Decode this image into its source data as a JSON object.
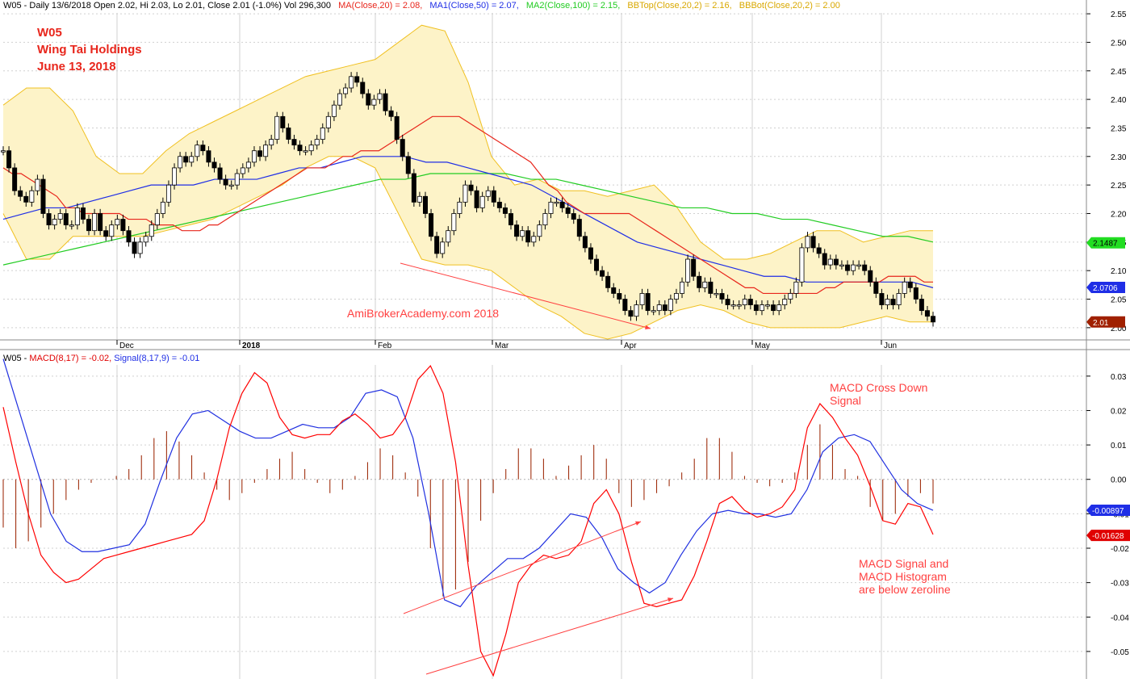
{
  "header": {
    "main_prefix": "W05 - Daily 13/6/2018 Open 2.02, Hi 2.03, Lo 2.01, Close 2.01 (-1.0%) Vol 296,300",
    "ma20": "MA(Close,20) = 2.08,",
    "ma50": "MA1(Close,50) = 2.07,",
    "ma100": "MA2(Close,100) = 2.15,",
    "bbtop": "BBTop(Close,20,2) = 2.16,",
    "bbbot": "BBBot(Close,20,2) = 2.00",
    "macd_prefix": "W05 -",
    "macd_lab": "MACD(8,17) = -0.02,",
    "signal_lab": "Signal(8,17,9) = -0.01"
  },
  "title": {
    "ticker": "W05",
    "company": "Wing Tai Holdings",
    "date": "June 13, 2018"
  },
  "annotations": {
    "watermark": "AmiBrokerAcademy.com  2018",
    "cross_down": "MACD Cross Down Signal",
    "below_zero": "MACD Signal and MACD Histogram are below zeroline"
  },
  "colors": {
    "ma20": "#e8261c",
    "ma50": "#1f2ee6",
    "ma100": "#22cc22",
    "bollinger": "#f0c020",
    "bollinger_fill": "#fdf3c8",
    "macd": "#ff0000",
    "signal": "#2030e0",
    "histogram": "#a03010",
    "annotation": "#ff4040",
    "grid": "#d0d0d0"
  },
  "chart_data": [
    {
      "type": "candlestick",
      "x_tick_labels": [
        "Dec",
        "2018",
        "Feb",
        "Mar",
        "Apr",
        "May",
        "Jun"
      ],
      "y_ticks": [
        2.0,
        2.05,
        2.1,
        2.15,
        2.2,
        2.25,
        2.3,
        2.35,
        2.4,
        2.45,
        2.5,
        2.55
      ],
      "ylim": [
        1.98,
        2.56
      ],
      "grid": true,
      "price_labels": [
        {
          "text": "2.1487",
          "value": 2.1487,
          "color": "#22dd22"
        },
        {
          "text": "2.0706",
          "value": 2.0706,
          "color": "#1f2ee6"
        },
        {
          "text": "2.01",
          "value": 2.01,
          "color": "#a02000"
        }
      ],
      "close": [
        2.31,
        2.28,
        2.24,
        2.23,
        2.22,
        2.24,
        2.26,
        2.2,
        2.18,
        2.19,
        2.2,
        2.18,
        2.18,
        2.21,
        2.19,
        2.17,
        2.2,
        2.17,
        2.16,
        2.18,
        2.19,
        2.17,
        2.15,
        2.13,
        2.15,
        2.16,
        2.18,
        2.2,
        2.22,
        2.25,
        2.28,
        2.3,
        2.29,
        2.3,
        2.32,
        2.31,
        2.29,
        2.28,
        2.26,
        2.25,
        2.25,
        2.27,
        2.28,
        2.29,
        2.31,
        2.3,
        2.32,
        2.33,
        2.37,
        2.35,
        2.33,
        2.32,
        2.31,
        2.31,
        2.32,
        2.33,
        2.35,
        2.37,
        2.39,
        2.41,
        2.42,
        2.44,
        2.43,
        2.41,
        2.39,
        2.4,
        2.41,
        2.38,
        2.37,
        2.33,
        2.3,
        2.27,
        2.22,
        2.23,
        2.2,
        2.16,
        2.13,
        2.15,
        2.17,
        2.2,
        2.22,
        2.25,
        2.24,
        2.21,
        2.23,
        2.24,
        2.22,
        2.21,
        2.2,
        2.18,
        2.16,
        2.17,
        2.15,
        2.16,
        2.18,
        2.2,
        2.22,
        2.22,
        2.21,
        2.2,
        2.19,
        2.16,
        2.14,
        2.12,
        2.1,
        2.09,
        2.07,
        2.06,
        2.05,
        2.03,
        2.02,
        2.04,
        2.06,
        2.03,
        2.03,
        2.04,
        2.03,
        2.05,
        2.06,
        2.08,
        2.12,
        2.09,
        2.07,
        2.08,
        2.06,
        2.06,
        2.05,
        2.04,
        2.04,
        2.04,
        2.05,
        2.04,
        2.03,
        2.04,
        2.04,
        2.03,
        2.04,
        2.05,
        2.06,
        2.08,
        2.14,
        2.16,
        2.14,
        2.13,
        2.11,
        2.12,
        2.11,
        2.11,
        2.1,
        2.11,
        2.11,
        2.1,
        2.08,
        2.06,
        2.04,
        2.05,
        2.04,
        2.06,
        2.08,
        2.07,
        2.05,
        2.03,
        2.02,
        2.01
      ],
      "ma20": [
        2.28,
        2.27,
        2.27,
        2.26,
        2.25,
        2.24,
        2.23,
        2.21,
        2.21,
        2.2,
        2.2,
        2.2,
        2.2,
        2.2,
        2.19,
        2.19,
        2.19,
        2.18,
        2.18,
        2.18,
        2.17,
        2.17,
        2.17,
        2.18,
        2.18,
        2.19,
        2.2,
        2.21,
        2.22,
        2.23,
        2.24,
        2.25,
        2.26,
        2.27,
        2.28,
        2.28,
        2.28,
        2.29,
        2.3,
        2.3,
        2.31,
        2.31,
        2.31,
        2.32,
        2.33,
        2.34,
        2.35,
        2.36,
        2.37,
        2.37,
        2.37,
        2.37,
        2.36,
        2.35,
        2.34,
        2.33,
        2.32,
        2.31,
        2.3,
        2.29,
        2.27,
        2.25,
        2.24,
        2.22,
        2.21,
        2.2,
        2.2,
        2.2,
        2.2,
        2.2,
        2.2,
        2.19,
        2.18,
        2.17,
        2.16,
        2.15,
        2.14,
        2.13,
        2.12,
        2.11,
        2.1,
        2.09,
        2.08,
        2.07,
        2.07,
        2.06,
        2.06,
        2.06,
        2.06,
        2.06,
        2.06,
        2.06,
        2.07,
        2.07,
        2.08,
        2.08,
        2.08,
        2.08,
        2.08,
        2.09,
        2.09,
        2.09,
        2.09,
        2.08,
        2.08
      ],
      "ma50": [
        2.19,
        2.2,
        2.21,
        2.21,
        2.22,
        2.23,
        2.24,
        2.25,
        2.25,
        2.25,
        2.26,
        2.26,
        2.26,
        2.27,
        2.28,
        2.28,
        2.29,
        2.3,
        2.3,
        2.3,
        2.29,
        2.29,
        2.28,
        2.27,
        2.26,
        2.25,
        2.23,
        2.21,
        2.19,
        2.17,
        2.15,
        2.14,
        2.13,
        2.12,
        2.11,
        2.1,
        2.09,
        2.09,
        2.08,
        2.08,
        2.08,
        2.08,
        2.08,
        2.08,
        2.07
      ],
      "ma100": [
        2.11,
        2.12,
        2.13,
        2.14,
        2.15,
        2.16,
        2.17,
        2.18,
        2.19,
        2.2,
        2.21,
        2.22,
        2.23,
        2.24,
        2.25,
        2.26,
        2.26,
        2.27,
        2.27,
        2.27,
        2.27,
        2.26,
        2.26,
        2.25,
        2.24,
        2.23,
        2.22,
        2.21,
        2.21,
        2.2,
        2.2,
        2.19,
        2.19,
        2.18,
        2.17,
        2.16,
        2.16,
        2.15
      ],
      "bb_top": [
        2.39,
        2.42,
        2.42,
        2.38,
        2.3,
        2.27,
        2.27,
        2.31,
        2.34,
        2.36,
        2.38,
        2.4,
        2.42,
        2.44,
        2.45,
        2.46,
        2.47,
        2.5,
        2.53,
        2.52,
        2.43,
        2.3,
        2.25,
        2.26,
        2.24,
        2.24,
        2.23,
        2.24,
        2.25,
        2.21,
        2.15,
        2.12,
        2.12,
        2.13,
        2.15,
        2.17,
        2.17,
        2.15,
        2.16,
        2.17,
        2.17
      ],
      "bb_bot": [
        2.2,
        2.12,
        2.12,
        2.16,
        2.16,
        2.16,
        2.16,
        2.17,
        2.18,
        2.19,
        2.21,
        2.23,
        2.25,
        2.28,
        2.3,
        2.3,
        2.28,
        2.2,
        2.12,
        2.11,
        2.11,
        2.1,
        2.07,
        2.04,
        2.02,
        1.99,
        1.98,
        1.99,
        2.01,
        2.03,
        2.04,
        2.03,
        2.01,
        2.0,
        2.0,
        2.0,
        2.0,
        2.01,
        2.02,
        2.01,
        2.01
      ]
    },
    {
      "type": "line",
      "y_ticks": [
        0.03,
        0.02,
        0.01,
        0.0,
        -0.01,
        -0.02,
        -0.03,
        -0.04,
        -0.05
      ],
      "ylim": [
        -0.058,
        0.037
      ],
      "grid": true,
      "value_labels": [
        {
          "text": "-0.00897",
          "value": -0.00897,
          "color": "#1f2ee6"
        },
        {
          "text": "-0.01628",
          "value": -0.01628,
          "color": "#e00000"
        }
      ],
      "series": [
        {
          "name": "MACD(8,17)",
          "values": [
            0.021,
            0.005,
            -0.01,
            -0.022,
            -0.027,
            -0.03,
            -0.029,
            -0.026,
            -0.023,
            -0.022,
            -0.021,
            -0.02,
            -0.019,
            -0.018,
            -0.017,
            -0.016,
            -0.012,
            0.0,
            0.015,
            0.025,
            0.031,
            0.028,
            0.018,
            0.013,
            0.012,
            0.013,
            0.013,
            0.017,
            0.019,
            0.016,
            0.012,
            0.013,
            0.018,
            0.029,
            0.033,
            0.025,
            0.005,
            -0.025,
            -0.05,
            -0.057,
            -0.045,
            -0.03,
            -0.025,
            -0.022,
            -0.023,
            -0.022,
            -0.018,
            -0.007,
            -0.003,
            -0.01,
            -0.024,
            -0.036,
            -0.037,
            -0.036,
            -0.035,
            -0.028,
            -0.018,
            -0.007,
            -0.005,
            -0.009,
            -0.011,
            -0.01,
            -0.008,
            -0.003,
            0.015,
            0.022,
            0.018,
            0.012,
            0.007,
            -0.002,
            -0.012,
            -0.013,
            -0.007,
            -0.008,
            -0.016
          ]
        },
        {
          "name": "Signal(8,17,9)",
          "values": [
            0.035,
            0.02,
            0.005,
            -0.01,
            -0.018,
            -0.021,
            -0.021,
            -0.02,
            -0.019,
            -0.013,
            0.0,
            0.012,
            0.019,
            0.02,
            0.017,
            0.014,
            0.012,
            0.012,
            0.014,
            0.016,
            0.015,
            0.015,
            0.018,
            0.025,
            0.026,
            0.024,
            0.012,
            -0.01,
            -0.035,
            -0.037,
            -0.031,
            -0.027,
            -0.023,
            -0.023,
            -0.02,
            -0.015,
            -0.01,
            -0.011,
            -0.017,
            -0.026,
            -0.03,
            -0.033,
            -0.03,
            -0.022,
            -0.015,
            -0.01,
            -0.009,
            -0.01,
            -0.01,
            -0.011,
            -0.01,
            -0.003,
            0.008,
            0.012,
            0.013,
            0.011,
            0.004,
            -0.003,
            -0.007,
            -0.009
          ]
        },
        {
          "name": "Histogram",
          "values": [
            -0.014,
            -0.02,
            -0.018,
            -0.014,
            -0.01,
            -0.006,
            -0.003,
            -0.001,
            0.0,
            0.001,
            0.003,
            0.007,
            0.012,
            0.014,
            0.011,
            0.007,
            0.002,
            -0.003,
            -0.006,
            -0.004,
            -0.001,
            0.003,
            0.006,
            0.008,
            0.003,
            -0.001,
            -0.004,
            -0.003,
            0.001,
            0.005,
            0.009,
            0.007,
            0.002,
            -0.005,
            -0.02,
            -0.034,
            -0.032,
            -0.024,
            -0.012,
            -0.004,
            0.003,
            0.009,
            0.009,
            0.006,
            0.001,
            0.004,
            0.007,
            0.01,
            0.006,
            -0.004,
            -0.008,
            -0.006,
            -0.004,
            -0.002,
            0.002,
            0.006,
            0.012,
            0.012,
            0.008,
            0.001,
            -0.001,
            -0.002,
            -0.001,
            0.002,
            0.01,
            0.016,
            0.01,
            0.003,
            0.001,
            -0.008,
            -0.012,
            -0.01,
            -0.005,
            -0.004,
            -0.007
          ]
        }
      ]
    }
  ]
}
